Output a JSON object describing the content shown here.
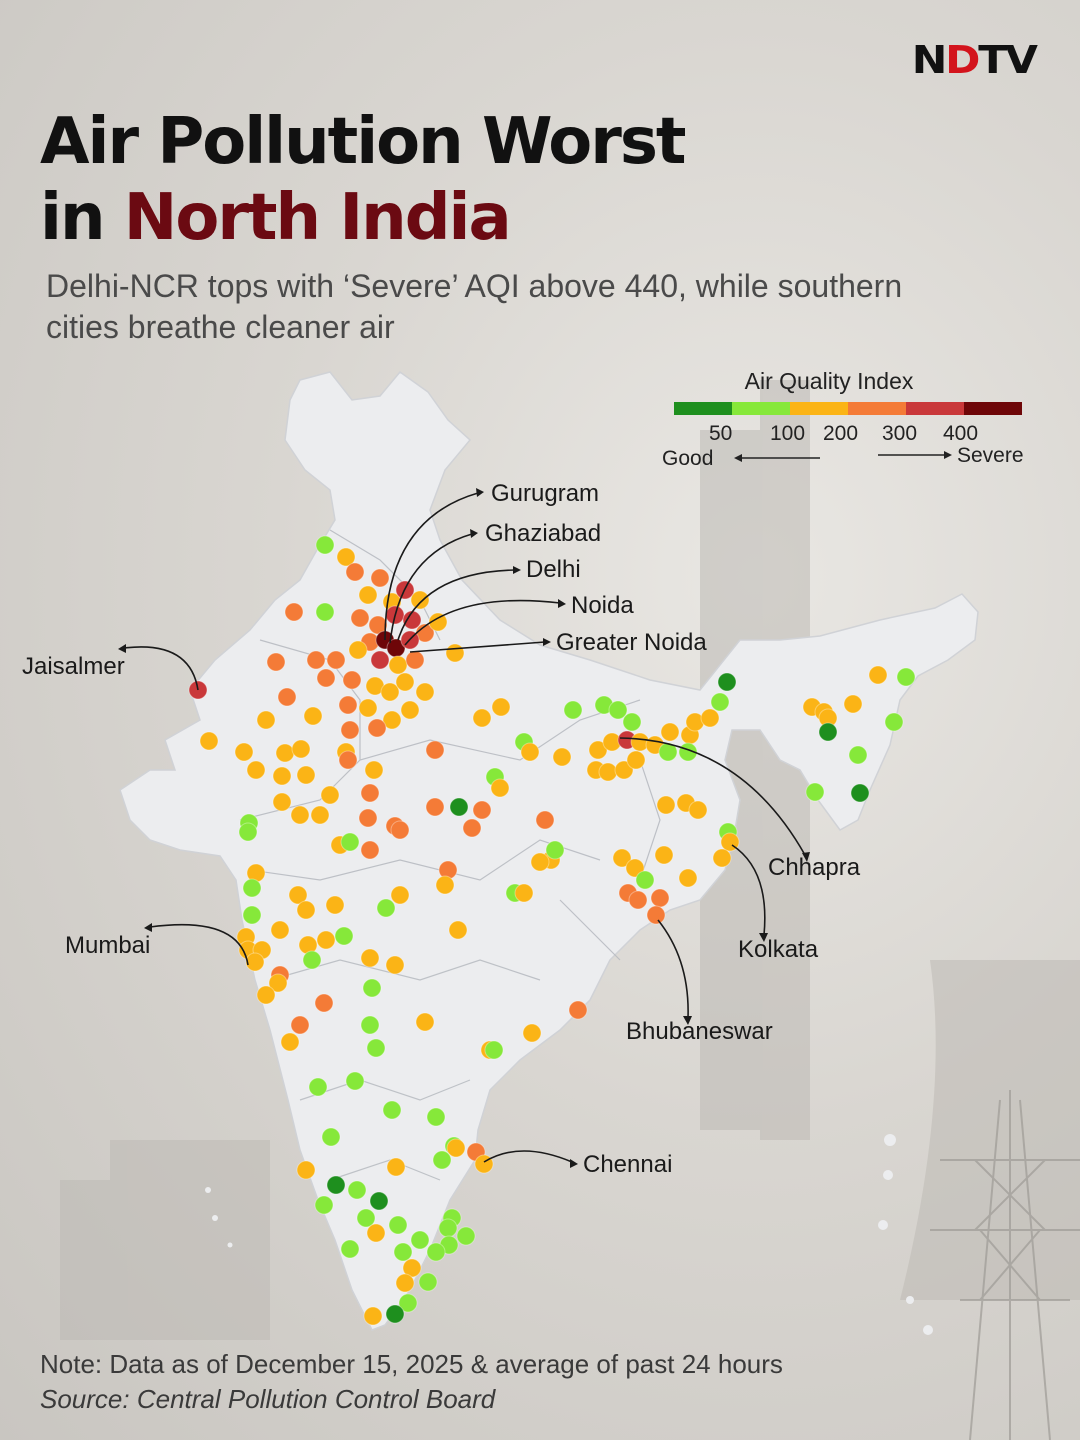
{
  "brand": {
    "text_pre": "N",
    "text_dot": "D",
    "text_post": "TV"
  },
  "title": {
    "line1": "Air Pollution Worst",
    "line2_prefix": "in ",
    "line2_highlight": "North India"
  },
  "subtitle": "Delhi-NCR tops with ‘Severe’ AQI above 440, while southern cities breathe cleaner air",
  "legend": {
    "title": "Air Quality Index",
    "colors": [
      "#1e8f1e",
      "#86e83a",
      "#fbb416",
      "#f47b37",
      "#c9383a",
      "#6e0608"
    ],
    "ticks": [
      "50",
      "100",
      "200",
      "300",
      "400"
    ],
    "good_label": "Good",
    "severe_label": "Severe"
  },
  "callouts": {
    "gurugram": "Gurugram",
    "ghaziabad": "Ghaziabad",
    "delhi": "Delhi",
    "noida": "Noida",
    "greater_noida": "Greater Noida",
    "jaisalmer": "Jaisalmer",
    "mumbai": "Mumbai",
    "chhapra": "Chhapra",
    "kolkata": "Kolkata",
    "bhubaneswar": "Bhubaneswar",
    "chennai": "Chennai"
  },
  "note": "Note: Data as of December 15, 2025 & average of past 24 hours",
  "source": "Source: Central Pollution Control Board"
}
